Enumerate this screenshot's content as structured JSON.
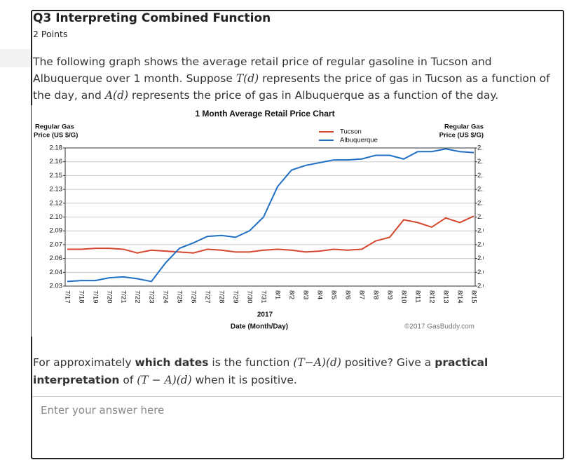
{
  "question": {
    "title": "Q3 Interpreting Combined Function",
    "points": "2 Points",
    "intro": [
      "The following graph shows the average retail price of regular gasoline in Tucson and Albuquerque over 1 month. Suppose ",
      "T(d)",
      " represents the price of gas in Tucson as a function of the day, and ",
      "A(d)",
      " represents the price of gas in Albuquerque as a function of the day."
    ],
    "prompt": [
      "For approximately ",
      "which dates",
      " is the function ",
      "(T−A)(d)",
      " positive? Give a ",
      "practical interpretation",
      " of ",
      "(T − A)(d)",
      " when it is positive."
    ],
    "answer_placeholder": "Enter your answer here"
  },
  "chart_data": {
    "type": "line",
    "title": "1 Month Average Retail Price Chart",
    "ylabel": [
      "Regular Gas",
      "Price (US $/G)"
    ],
    "xlabel": "Date (Month/Day)",
    "year": "2017",
    "credit": "©2017 GasBuddy.com",
    "categories": [
      "7/17",
      "7/18",
      "7/19",
      "7/20",
      "7/21",
      "7/22",
      "7/23",
      "7/24",
      "7/25",
      "7/26",
      "7/27",
      "7/28",
      "7/29",
      "7/30",
      "7/31",
      "8/1",
      "8/2",
      "8/3",
      "8/4",
      "8/5",
      "8/6",
      "8/7",
      "8/8",
      "8/9",
      "8/10",
      "8/11",
      "8/12",
      "8/13",
      "8/14",
      "8/15"
    ],
    "series": [
      {
        "name": "Tucson",
        "color": "#d4472c",
        "values": [
          2.07,
          2.07,
          2.071,
          2.071,
          2.07,
          2.066,
          2.069,
          2.068,
          2.067,
          2.066,
          2.07,
          2.069,
          2.067,
          2.067,
          2.069,
          2.07,
          2.069,
          2.067,
          2.068,
          2.07,
          2.069,
          2.07,
          2.079,
          2.083,
          2.102,
          2.099,
          2.094,
          2.104,
          2.099,
          2.106
        ]
      },
      {
        "name": "Albuquerque",
        "color": "#1f6fc5",
        "values": [
          2.035,
          2.036,
          2.036,
          2.039,
          2.04,
          2.038,
          2.035,
          2.055,
          2.071,
          2.077,
          2.084,
          2.085,
          2.083,
          2.09,
          2.105,
          2.138,
          2.156,
          2.161,
          2.164,
          2.167,
          2.167,
          2.168,
          2.172,
          2.172,
          2.168,
          2.176,
          2.176,
          2.179,
          2.176,
          2.175
        ]
      }
    ],
    "ylim": [
      2.03,
      2.18
    ],
    "yticks": [
      2.03,
      {
        "value": 2.045,
        "label": "2.04"
      },
      2.06,
      {
        "value": 2.075,
        "label": "2.07"
      },
      2.09,
      {
        "value": 2.105,
        "label": "2.10"
      },
      2.12,
      {
        "value": 2.135,
        "label": "2.13"
      },
      2.15,
      {
        "value": 2.165,
        "label": "2.16"
      },
      2.18
    ],
    "grid": true
  }
}
